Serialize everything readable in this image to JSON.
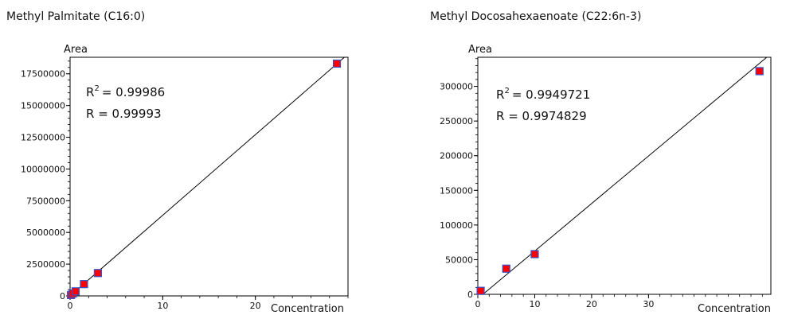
{
  "chart_data": [
    {
      "type": "scatter",
      "title": "Methyl Palmitate (C16:0)",
      "ylabel": "Area",
      "xlabel": "Concentration",
      "r2_label": "R",
      "r2_value": "= 0.99986",
      "r_text": "R = 0.99993",
      "xlim": [
        0,
        30
      ],
      "ylim": [
        0,
        18800000
      ],
      "x_ticks": [
        0,
        10,
        20
      ],
      "x_tick_labels": [
        "0",
        "10",
        "20"
      ],
      "y_ticks": [
        0,
        2500000,
        5000000,
        7500000,
        10000000,
        12500000,
        15000000,
        17500000
      ],
      "y_tick_labels": [
        "0",
        "2500000",
        "5000000",
        "7500000",
        "10000000",
        "12500000",
        "15000000",
        "17500000"
      ],
      "fit_line": [
        [
          -0.2,
          -120000
        ],
        [
          30.0,
          19050000
        ]
      ],
      "points": [
        {
          "x": 0.1,
          "y": 70000
        },
        {
          "x": 0.3,
          "y": 190000
        },
        {
          "x": 0.6,
          "y": 360000
        },
        {
          "x": 1.5,
          "y": 930000
        },
        {
          "x": 3.0,
          "y": 1800000
        },
        {
          "x": 28.8,
          "y": 18300000
        }
      ],
      "grid": false,
      "marker_color": "#ff0000",
      "marker_edge_color": "#3355cc",
      "line_color": "#000000"
    },
    {
      "type": "scatter",
      "title": "Methyl Docosahexaenoate (C22:6n-3)",
      "ylabel": "Area",
      "xlabel": "Concentration",
      "r2_label": "R",
      "r2_value": "= 0.9949721",
      "r_text": "R = 0.9974829",
      "xlim": [
        0,
        51.5
      ],
      "ylim": [
        0,
        342000
      ],
      "x_ticks": [
        0,
        10,
        20,
        30
      ],
      "x_tick_labels": [
        "0",
        "10",
        "20",
        "30"
      ],
      "y_ticks": [
        0,
        50000,
        100000,
        150000,
        200000,
        250000,
        300000
      ],
      "y_tick_labels": [
        "0",
        "50000",
        "100000",
        "150000",
        "200000",
        "250000",
        "300000"
      ],
      "fit_line": [
        [
          0.9,
          0
        ],
        [
          51.5,
          347000
        ]
      ],
      "points": [
        {
          "x": 0.5,
          "y": 5000
        },
        {
          "x": 5.0,
          "y": 37000
        },
        {
          "x": 10.0,
          "y": 58000
        },
        {
          "x": 49.5,
          "y": 322000
        }
      ],
      "grid": false,
      "marker_color": "#ff0000",
      "marker_edge_color": "#3355cc",
      "line_color": "#000000"
    }
  ]
}
